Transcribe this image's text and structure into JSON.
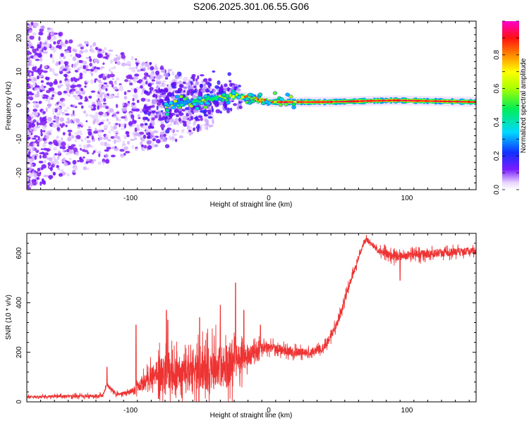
{
  "title": "S206.2025.301.06.55.G06",
  "chart_data": [
    {
      "type": "heatmap",
      "name": "spectrogram",
      "xlabel": "Height of straight line (km)",
      "ylabel": "Frequency (Hz)",
      "xlim": [
        -175,
        150
      ],
      "ylim": [
        -25,
        25
      ],
      "xticks": [
        -100,
        0,
        100
      ],
      "yticks": [
        -20,
        -10,
        0,
        10,
        20
      ],
      "colorbar": {
        "label": "Normalized spectral amplitude",
        "range": [
          0,
          1
        ],
        "ticks": [
          0.0,
          0.2,
          0.4,
          0.6,
          0.8
        ],
        "tick_labels": [
          "0.0",
          "0.2",
          "0.4",
          "0.6",
          "0.8"
        ]
      },
      "ridge": {
        "description_points": [
          {
            "x": -75,
            "freq": 0
          },
          {
            "x": -40,
            "freq": 2
          },
          {
            "x": -25,
            "freq": 3
          },
          {
            "x": 0,
            "freq": 1
          },
          {
            "x": 40,
            "freq": 1
          },
          {
            "x": 90,
            "freq": 1.5
          },
          {
            "x": 150,
            "freq": 1
          }
        ],
        "peak_amplitude": 0.95
      }
    },
    {
      "type": "line",
      "name": "snr",
      "xlabel": "Height of straight line (km)",
      "ylabel": "SNR (10 * v/v)",
      "xlim": [
        -175,
        150
      ],
      "ylim": [
        0,
        680
      ],
      "xticks": [
        -100,
        0,
        100
      ],
      "yticks": [
        0,
        200,
        400,
        600
      ],
      "color": "#ee3333",
      "trend": [
        {
          "x": -175,
          "y": 20
        },
        {
          "x": -120,
          "y": 25
        },
        {
          "x": -117,
          "y": 70
        },
        {
          "x": -110,
          "y": 30
        },
        {
          "x": -100,
          "y": 40
        },
        {
          "x": -90,
          "y": 80
        },
        {
          "x": -80,
          "y": 120
        },
        {
          "x": -70,
          "y": 110
        },
        {
          "x": -60,
          "y": 130
        },
        {
          "x": -50,
          "y": 120
        },
        {
          "x": -40,
          "y": 130
        },
        {
          "x": -30,
          "y": 150
        },
        {
          "x": -20,
          "y": 170
        },
        {
          "x": -10,
          "y": 200
        },
        {
          "x": 0,
          "y": 220
        },
        {
          "x": 10,
          "y": 210
        },
        {
          "x": 20,
          "y": 200
        },
        {
          "x": 30,
          "y": 200
        },
        {
          "x": 40,
          "y": 220
        },
        {
          "x": 50,
          "y": 320
        },
        {
          "x": 60,
          "y": 500
        },
        {
          "x": 70,
          "y": 660
        },
        {
          "x": 80,
          "y": 610
        },
        {
          "x": 90,
          "y": 590
        },
        {
          "x": 100,
          "y": 590
        },
        {
          "x": 120,
          "y": 600
        },
        {
          "x": 150,
          "y": 610
        }
      ],
      "noise_amplitude": [
        {
          "x": -175,
          "a": 10
        },
        {
          "x": -100,
          "a": 15
        },
        {
          "x": -85,
          "a": 90
        },
        {
          "x": -75,
          "a": 140
        },
        {
          "x": -60,
          "a": 130
        },
        {
          "x": -45,
          "a": 170
        },
        {
          "x": -30,
          "a": 200
        },
        {
          "x": -20,
          "a": 130
        },
        {
          "x": -10,
          "a": 70
        },
        {
          "x": 0,
          "a": 40
        },
        {
          "x": 30,
          "a": 30
        },
        {
          "x": 50,
          "a": 40
        },
        {
          "x": 70,
          "a": 20
        },
        {
          "x": 90,
          "a": 40
        },
        {
          "x": 150,
          "a": 30
        }
      ],
      "spikes": [
        {
          "x": -117,
          "y": 140
        },
        {
          "x": -96,
          "y": 310
        },
        {
          "x": -74,
          "y": 370
        },
        {
          "x": -73,
          "y": 330
        },
        {
          "x": -50,
          "y": 340
        },
        {
          "x": -35,
          "y": 390
        },
        {
          "x": -24,
          "y": 480
        },
        {
          "x": -18,
          "y": 370
        },
        {
          "x": -6,
          "y": 310
        },
        {
          "x": 95,
          "y": 490
        }
      ]
    }
  ]
}
